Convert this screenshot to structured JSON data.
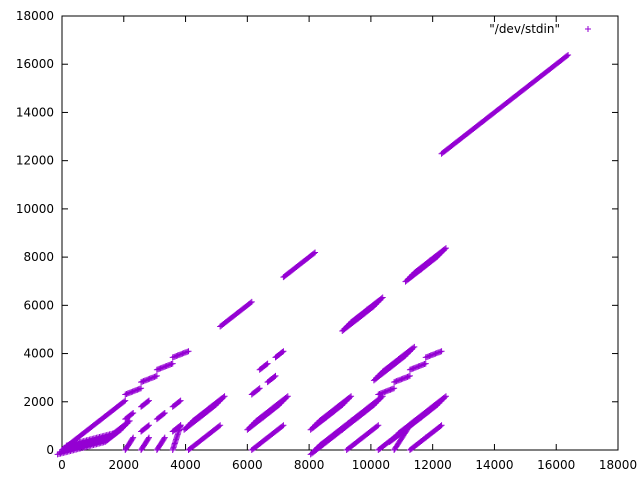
{
  "chart_data": {
    "type": "scatter",
    "marker": "+",
    "color": "#9400d3",
    "grid": false,
    "legend_position": "top-right",
    "xlim": [
      0,
      18000
    ],
    "ylim": [
      0,
      18000
    ],
    "xticks": [
      "0",
      "2000",
      "4000",
      "6000",
      "8000",
      "10000",
      "12000",
      "14000",
      "16000",
      "18000"
    ],
    "yticks": [
      "0",
      "2000",
      "4000",
      "6000",
      "8000",
      "10000",
      "12000",
      "14000",
      "16000",
      "18000"
    ],
    "series": [
      {
        "name": "\"/dev/stdin\"",
        "segments": [
          {
            "x": [
              0,
              2048
            ],
            "y": [
              0,
              2048
            ]
          },
          {
            "x": [
              2048,
              2560
            ],
            "y": [
              2304,
              2560
            ]
          },
          {
            "x": [
              2560,
              3072
            ],
            "y": [
              2816,
              3072
            ]
          },
          {
            "x": [
              3072,
              3584
            ],
            "y": [
              3328,
              3584
            ]
          },
          {
            "x": [
              3584,
              4096
            ],
            "y": [
              3840,
              4096
            ]
          },
          {
            "x": [
              5120,
              6144
            ],
            "y": [
              5120,
              6144
            ]
          },
          {
            "x": [
              7168,
              8192
            ],
            "y": [
              7168,
              8192
            ]
          },
          {
            "x": [
              12288,
              16384
            ],
            "y": [
              12288,
              16384
            ]
          },
          {
            "x": [
              6144,
              7168
            ],
            "y": [
              0,
              1024
            ]
          },
          {
            "x": [
              4096,
              5120
            ],
            "y": [
              0,
              1024
            ]
          },
          {
            "x": [
              6144,
              6400
            ],
            "y": [
              2304,
              2560
            ]
          },
          {
            "x": [
              6400,
              6656
            ],
            "y": [
              3328,
              3584
            ]
          },
          {
            "x": [
              6656,
              6912
            ],
            "y": [
              2816,
              3072
            ]
          },
          {
            "x": [
              6912,
              7168
            ],
            "y": [
              3840,
              4096
            ]
          },
          {
            "x": [
              10240,
              10752
            ],
            "y": [
              2304,
              2560
            ]
          },
          {
            "x": [
              10752,
              11264
            ],
            "y": [
              2816,
              3072
            ]
          },
          {
            "x": [
              11264,
              11776
            ],
            "y": [
              3328,
              3584
            ]
          },
          {
            "x": [
              11776,
              12288
            ],
            "y": [
              3840,
              4096
            ]
          },
          {
            "x": [
              8192,
              9216
            ],
            "y": [
              0,
              1024
            ]
          },
          {
            "x": [
              9216,
              10240
            ],
            "y": [
              0,
              1024
            ]
          },
          {
            "x": [
              10240,
              10752
            ],
            "y": [
              0,
              512
            ]
          },
          {
            "x": [
              10752,
              11264
            ],
            "y": [
              0,
              1024
            ]
          },
          {
            "x": [
              11264,
              11776
            ],
            "y": [
              0,
              512
            ]
          },
          {
            "x": [
              11776,
              12288
            ],
            "y": [
              512,
              1024
            ]
          },
          {
            "x": [
              2048,
              2304
            ],
            "y": [
              0,
              512
            ]
          },
          {
            "x": [
              2560,
              2816
            ],
            "y": [
              0,
              512
            ]
          },
          {
            "x": [
              3072,
              3328
            ],
            "y": [
              0,
              512
            ]
          },
          {
            "x": [
              3584,
              3840
            ],
            "y": [
              0,
              1024
            ]
          },
          {
            "x": [
              2048,
              2304
            ],
            "y": [
              1280,
              1536
            ]
          },
          {
            "x": [
              2560,
              2816
            ],
            "y": [
              1792,
              2048
            ]
          },
          {
            "x": [
              3072,
              3328
            ],
            "y": [
              1280,
              1536
            ]
          },
          {
            "x": [
              3584,
              3840
            ],
            "y": [
              1792,
              2048
            ]
          },
          {
            "x": [
              2560,
              2816
            ],
            "y": [
              768,
              1024
            ]
          },
          {
            "x": [
              3584,
              3840
            ],
            "y": [
              768,
              1024
            ]
          }
        ],
        "clusters": [
          {
            "x": [
              0,
              1536
            ],
            "y": [
              0,
              512
            ]
          },
          {
            "x": [
              1536,
              2048
            ],
            "y": [
              512,
              1024
            ]
          },
          {
            "x": [
              4096,
              4608
            ],
            "y": [
              1024,
              1536
            ]
          },
          {
            "x": [
              4608,
              5120
            ],
            "y": [
              1536,
              2048
            ]
          },
          {
            "x": [
              6144,
              6656
            ],
            "y": [
              1024,
              1536
            ]
          },
          {
            "x": [
              6656,
              7168
            ],
            "y": [
              1536,
              2048
            ]
          },
          {
            "x": [
              8192,
              8704
            ],
            "y": [
              1024,
              1536
            ]
          },
          {
            "x": [
              8704,
              9216
            ],
            "y": [
              1536,
              2048
            ]
          },
          {
            "x": [
              9216,
              9728
            ],
            "y": [
              1024,
              1536
            ]
          },
          {
            "x": [
              9728,
              10240
            ],
            "y": [
              1536,
              2048
            ]
          },
          {
            "x": [
              8192,
              9216
            ],
            "y": [
              0,
              1024
            ]
          },
          {
            "x": [
              9216,
              9728
            ],
            "y": [
              5120,
              5632
            ]
          },
          {
            "x": [
              9728,
              10240
            ],
            "y": [
              5632,
              6144
            ]
          },
          {
            "x": [
              10240,
              10752
            ],
            "y": [
              3072,
              3584
            ]
          },
          {
            "x": [
              10752,
              11264
            ],
            "y": [
              3584,
              4096
            ]
          },
          {
            "x": [
              11264,
              11776
            ],
            "y": [
              7168,
              7680
            ]
          },
          {
            "x": [
              11776,
              12288
            ],
            "y": [
              7680,
              8192
            ]
          },
          {
            "x": [
              11264,
              11776
            ],
            "y": [
              1024,
              1536
            ]
          },
          {
            "x": [
              11776,
              12288
            ],
            "y": [
              1536,
              2048
            ]
          },
          {
            "x": [
              10752,
              11264
            ],
            "y": [
              512,
              1024
            ]
          }
        ]
      }
    ]
  }
}
